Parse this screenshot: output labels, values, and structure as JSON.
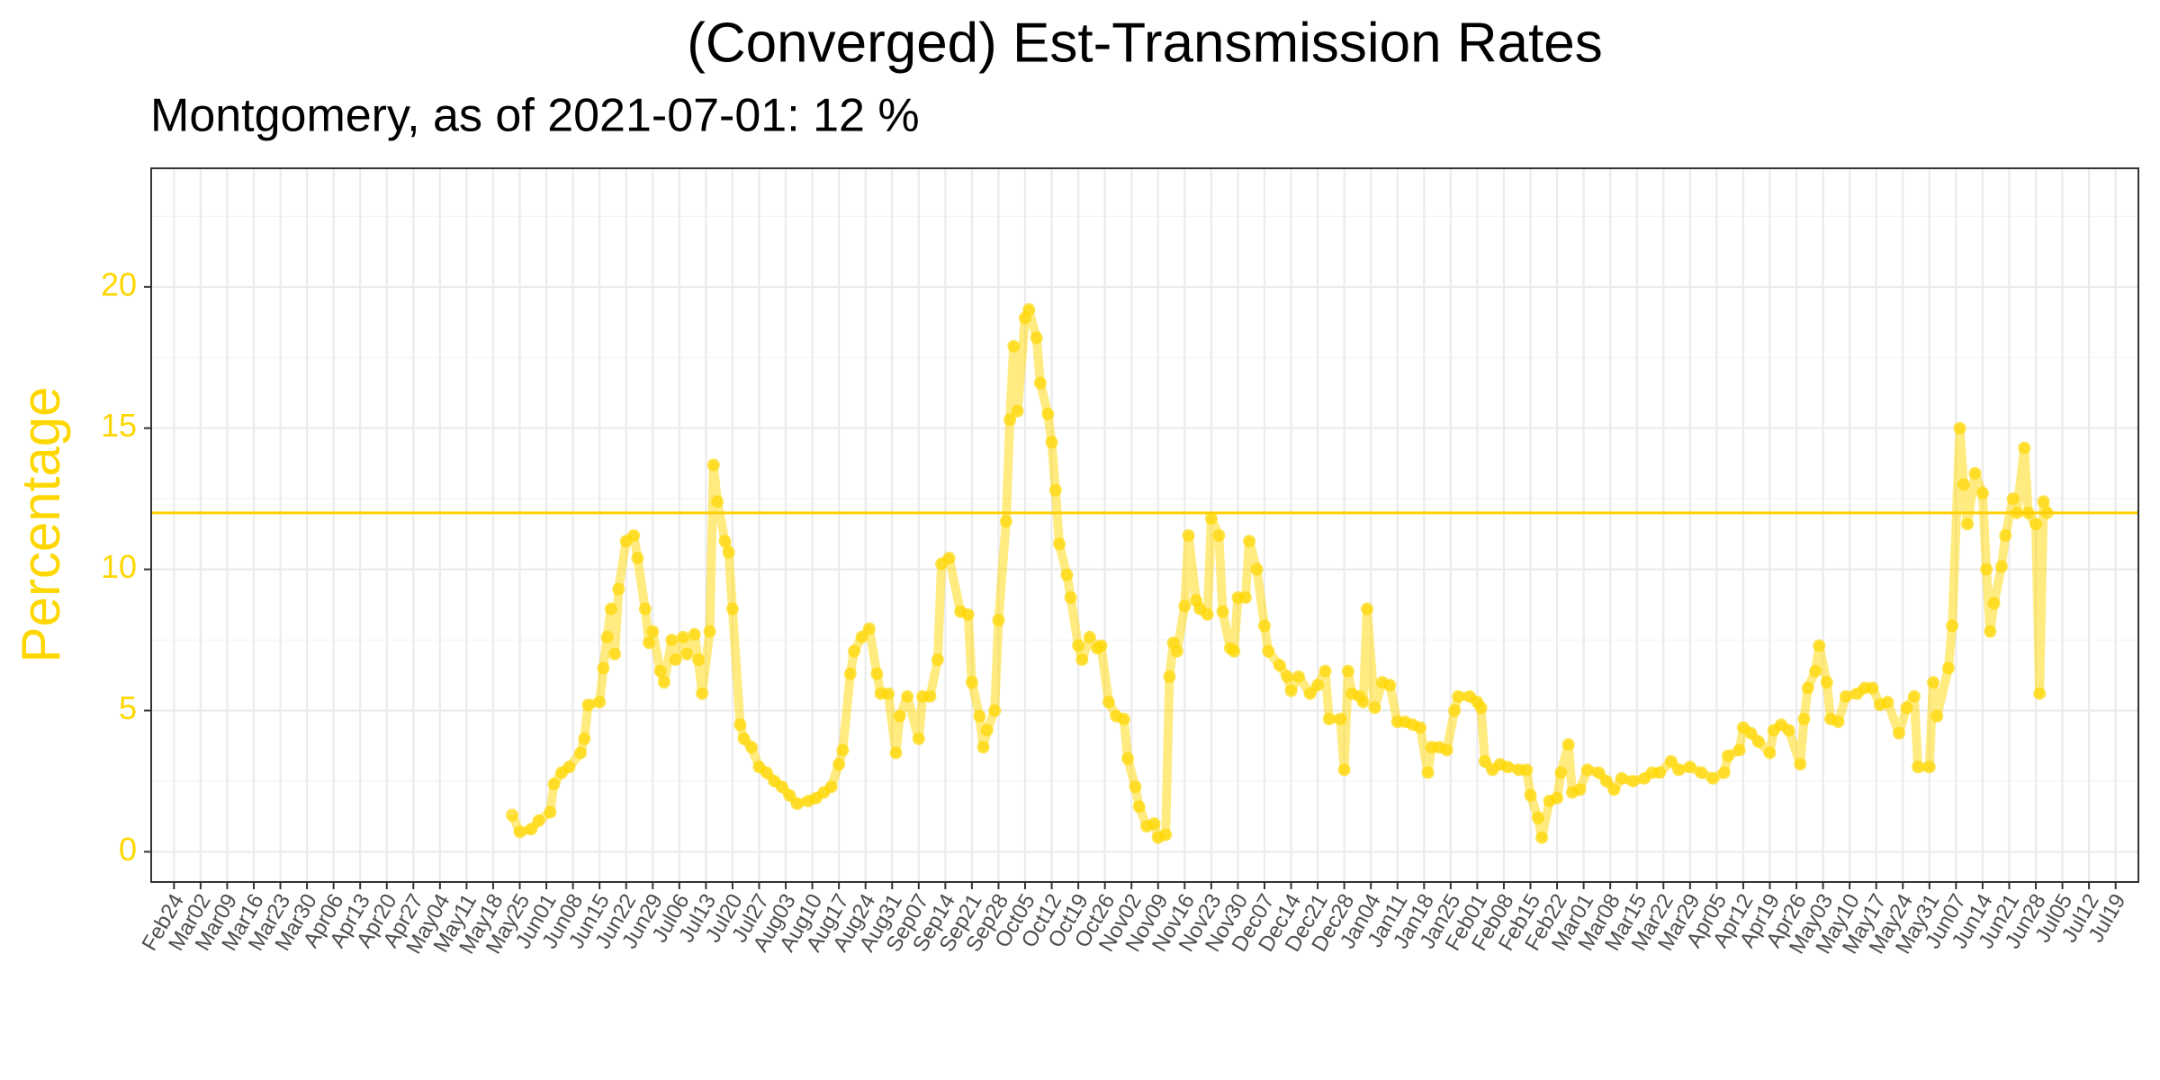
{
  "chart_data": {
    "type": "line",
    "title": "(Converged) Est-Transmission Rates",
    "subtitle": "Montgomery, as of 2021-07-01:  12 %",
    "ylabel": "Percentage",
    "color": "#FFD700",
    "hline": {
      "value": 12,
      "color": "#FFD000"
    },
    "xlim": [
      -6,
      517
    ],
    "ylim": [
      -1.07,
      24.2
    ],
    "yticks": [
      0,
      5,
      10,
      15,
      20
    ],
    "yminor": [
      2.5,
      7.5,
      12.5,
      17.5,
      22.5
    ],
    "grid": true,
    "xticks": [
      {
        "value": 0,
        "label": "Feb24"
      },
      {
        "value": 7,
        "label": "Mar02"
      },
      {
        "value": 14,
        "label": "Mar09"
      },
      {
        "value": 21,
        "label": "Mar16"
      },
      {
        "value": 28,
        "label": "Mar23"
      },
      {
        "value": 35,
        "label": "Mar30"
      },
      {
        "value": 42,
        "label": "Apr06"
      },
      {
        "value": 49,
        "label": "Apr13"
      },
      {
        "value": 56,
        "label": "Apr20"
      },
      {
        "value": 63,
        "label": "Apr27"
      },
      {
        "value": 70,
        "label": "May04"
      },
      {
        "value": 77,
        "label": "May11"
      },
      {
        "value": 84,
        "label": "May18"
      },
      {
        "value": 91,
        "label": "May25"
      },
      {
        "value": 98,
        "label": "Jun01"
      },
      {
        "value": 105,
        "label": "Jun08"
      },
      {
        "value": 112,
        "label": "Jun15"
      },
      {
        "value": 119,
        "label": "Jun22"
      },
      {
        "value": 126,
        "label": "Jun29"
      },
      {
        "value": 133,
        "label": "Jul06"
      },
      {
        "value": 140,
        "label": "Jul13"
      },
      {
        "value": 147,
        "label": "Jul20"
      },
      {
        "value": 154,
        "label": "Jul27"
      },
      {
        "value": 161,
        "label": "Aug03"
      },
      {
        "value": 168,
        "label": "Aug10"
      },
      {
        "value": 175,
        "label": "Aug17"
      },
      {
        "value": 182,
        "label": "Aug24"
      },
      {
        "value": 189,
        "label": "Aug31"
      },
      {
        "value": 196,
        "label": "Sep07"
      },
      {
        "value": 203,
        "label": "Sep14"
      },
      {
        "value": 210,
        "label": "Sep21"
      },
      {
        "value": 217,
        "label": "Sep28"
      },
      {
        "value": 224,
        "label": "Oct05"
      },
      {
        "value": 231,
        "label": "Oct12"
      },
      {
        "value": 238,
        "label": "Oct19"
      },
      {
        "value": 245,
        "label": "Oct26"
      },
      {
        "value": 252,
        "label": "Nov02"
      },
      {
        "value": 259,
        "label": "Nov09"
      },
      {
        "value": 266,
        "label": "Nov16"
      },
      {
        "value": 273,
        "label": "Nov23"
      },
      {
        "value": 280,
        "label": "Nov30"
      },
      {
        "value": 287,
        "label": "Dec07"
      },
      {
        "value": 294,
        "label": "Dec14"
      },
      {
        "value": 301,
        "label": "Dec21"
      },
      {
        "value": 308,
        "label": "Dec28"
      },
      {
        "value": 315,
        "label": "Jan04"
      },
      {
        "value": 322,
        "label": "Jan11"
      },
      {
        "value": 329,
        "label": "Jan18"
      },
      {
        "value": 336,
        "label": "Jan25"
      },
      {
        "value": 343,
        "label": "Feb01"
      },
      {
        "value": 350,
        "label": "Feb08"
      },
      {
        "value": 357,
        "label": "Feb15"
      },
      {
        "value": 364,
        "label": "Feb22"
      },
      {
        "value": 371,
        "label": "Mar01"
      },
      {
        "value": 378,
        "label": "Mar08"
      },
      {
        "value": 385,
        "label": "Mar15"
      },
      {
        "value": 392,
        "label": "Mar22"
      },
      {
        "value": 399,
        "label": "Mar29"
      },
      {
        "value": 406,
        "label": "Apr05"
      },
      {
        "value": 413,
        "label": "Apr12"
      },
      {
        "value": 420,
        "label": "Apr19"
      },
      {
        "value": 427,
        "label": "Apr26"
      },
      {
        "value": 434,
        "label": "May03"
      },
      {
        "value": 441,
        "label": "May10"
      },
      {
        "value": 448,
        "label": "May17"
      },
      {
        "value": 455,
        "label": "May24"
      },
      {
        "value": 462,
        "label": "May31"
      },
      {
        "value": 469,
        "label": "Jun07"
      },
      {
        "value": 476,
        "label": "Jun14"
      },
      {
        "value": 483,
        "label": "Jun21"
      },
      {
        "value": 490,
        "label": "Jun28"
      },
      {
        "value": 497,
        "label": "Jul05"
      },
      {
        "value": 504,
        "label": "Jul12"
      },
      {
        "value": 511,
        "label": "Jul19"
      }
    ],
    "x": [
      89,
      91,
      94,
      96,
      99,
      100,
      102,
      104,
      107,
      108,
      109,
      112,
      113,
      114,
      115,
      116,
      117,
      119,
      121,
      122,
      124,
      125,
      126,
      128,
      129,
      131,
      132,
      134,
      135,
      137,
      138,
      139,
      141,
      142,
      143,
      145,
      146,
      147,
      149,
      150,
      152,
      154,
      156,
      158,
      160,
      162,
      164,
      167,
      169,
      171,
      173,
      175,
      176,
      178,
      179,
      181,
      183,
      185,
      186,
      188,
      190,
      191,
      193,
      196,
      197,
      199,
      201,
      202,
      204,
      207,
      209,
      210,
      212,
      213,
      214,
      216,
      217,
      219,
      220,
      221,
      222,
      224,
      225,
      227,
      228,
      230,
      231,
      232,
      233,
      235,
      236,
      238,
      239,
      241,
      243,
      244,
      246,
      248,
      250,
      251,
      253,
      254,
      256,
      258,
      259,
      261,
      262,
      263,
      264,
      266,
      267,
      269,
      270,
      272,
      273,
      275,
      276,
      278,
      279,
      280,
      282,
      283,
      285,
      287,
      288,
      291,
      293,
      294,
      296,
      299,
      301,
      303,
      304,
      307,
      308,
      309,
      310,
      312,
      313,
      314,
      316,
      318,
      320,
      322,
      324,
      326,
      328,
      330,
      331,
      333,
      335,
      337,
      338,
      341,
      343,
      344,
      345,
      347,
      349,
      351,
      354,
      356,
      357,
      359,
      360,
      362,
      364,
      365,
      367,
      368,
      370,
      372,
      375,
      377,
      379,
      381,
      384,
      387,
      389,
      391,
      394,
      396,
      399,
      402,
      405,
      408,
      409,
      412,
      413,
      415,
      417,
      420,
      421,
      423,
      425,
      428,
      429,
      430,
      432,
      433,
      435,
      436,
      438,
      440,
      443,
      445,
      447,
      449,
      451,
      454,
      456,
      458,
      459,
      462,
      463,
      464,
      467,
      468,
      470,
      471,
      472,
      474,
      476,
      477,
      478,
      479,
      481,
      482,
      484,
      485,
      487,
      488,
      490,
      491,
      492,
      493
    ],
    "values": [
      1.3,
      0.7,
      0.8,
      1.1,
      1.4,
      2.4,
      2.8,
      3.0,
      3.5,
      4.0,
      5.2,
      5.3,
      6.5,
      7.6,
      8.6,
      7.0,
      9.3,
      11.0,
      11.2,
      10.4,
      8.6,
      7.4,
      7.8,
      6.4,
      6.0,
      7.5,
      6.8,
      7.6,
      7.0,
      7.7,
      6.8,
      5.6,
      7.8,
      13.7,
      12.4,
      11.0,
      10.6,
      8.6,
      4.5,
      4.0,
      3.7,
      3.0,
      2.8,
      2.5,
      2.3,
      2.0,
      1.7,
      1.8,
      1.9,
      2.1,
      2.3,
      3.1,
      3.6,
      6.3,
      7.1,
      7.6,
      7.9,
      6.3,
      5.6,
      5.6,
      3.5,
      4.8,
      5.5,
      4.0,
      5.5,
      5.5,
      6.8,
      10.2,
      10.4,
      8.5,
      8.4,
      6.0,
      4.8,
      3.7,
      4.3,
      5.0,
      8.2,
      11.7,
      15.3,
      17.9,
      15.6,
      18.9,
      19.2,
      18.2,
      16.6,
      15.5,
      14.5,
      12.8,
      10.9,
      9.8,
      9.0,
      7.3,
      6.8,
      7.6,
      7.2,
      7.3,
      5.3,
      4.8,
      4.7,
      3.3,
      2.3,
      1.6,
      0.9,
      1.0,
      0.5,
      0.6,
      6.2,
      7.4,
      7.1,
      8.7,
      11.2,
      8.9,
      8.6,
      8.4,
      11.8,
      11.2,
      8.5,
      7.2,
      7.1,
      9.0,
      9.0,
      11.0,
      10.0,
      8.0,
      7.1,
      6.6,
      6.2,
      5.7,
      6.2,
      5.6,
      5.9,
      6.4,
      4.7,
      4.7,
      2.9,
      6.4,
      5.6,
      5.5,
      5.3,
      8.6,
      5.1,
      6.0,
      5.9,
      4.6,
      4.6,
      4.5,
      4.4,
      2.8,
      3.7,
      3.7,
      3.6,
      5.0,
      5.5,
      5.5,
      5.3,
      5.1,
      3.2,
      2.9,
      3.1,
      3.0,
      2.9,
      2.9,
      2.0,
      1.2,
      0.5,
      1.8,
      1.9,
      2.8,
      3.8,
      2.1,
      2.2,
      2.9,
      2.8,
      2.5,
      2.2,
      2.6,
      2.5,
      2.6,
      2.8,
      2.8,
      3.2,
      2.9,
      3.0,
      2.8,
      2.6,
      2.8,
      3.4,
      3.6,
      4.4,
      4.2,
      3.9,
      3.5,
      4.3,
      4.5,
      4.3,
      3.1,
      4.7,
      5.8,
      6.4,
      7.3,
      6.0,
      4.7,
      4.6,
      5.5,
      5.6,
      5.8,
      5.8,
      5.2,
      5.3,
      4.2,
      5.1,
      5.5,
      3.0,
      3.0,
      6.0,
      4.8,
      6.5,
      8.0,
      15.0,
      13.0,
      11.6,
      13.4,
      12.7,
      10.0,
      7.8,
      8.8,
      10.1,
      11.2,
      12.5,
      12.0,
      14.3,
      12.0,
      11.6,
      5.6,
      12.4,
      12.0
    ]
  }
}
